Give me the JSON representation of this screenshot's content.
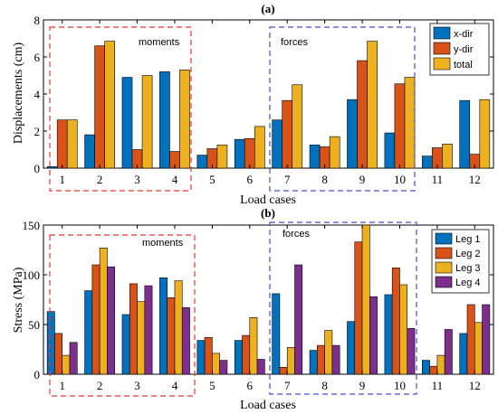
{
  "chart_data": [
    {
      "type": "bar",
      "title": "(a)",
      "xlabel": "Load cases",
      "ylabel": "Displacements (cm)",
      "ylim": [
        0,
        8
      ],
      "yticks": [
        0,
        2,
        4,
        6,
        8
      ],
      "categories": [
        "1",
        "2",
        "3",
        "4",
        "5",
        "6",
        "7",
        "8",
        "9",
        "10",
        "11",
        "12"
      ],
      "series": [
        {
          "name": "x-dir",
          "color": "#0072BD",
          "values": [
            0.08,
            1.8,
            4.9,
            5.2,
            0.7,
            1.55,
            2.6,
            1.25,
            3.7,
            1.9,
            0.65,
            3.65
          ]
        },
        {
          "name": "y-dir",
          "color": "#D95319",
          "values": [
            2.6,
            6.6,
            1.0,
            0.9,
            1.05,
            1.6,
            3.65,
            1.15,
            5.8,
            4.55,
            1.1,
            0.75
          ]
        },
        {
          "name": "total",
          "color": "#EDB120",
          "values": [
            2.6,
            6.85,
            5.0,
            5.3,
            1.25,
            2.25,
            4.5,
            1.7,
            6.85,
            4.9,
            1.3,
            3.7
          ]
        }
      ],
      "legend": "top-right",
      "annotations": [
        {
          "text": "moments",
          "region": "1-4"
        },
        {
          "text": "forces",
          "region": "7-10"
        }
      ]
    },
    {
      "type": "bar",
      "title": "(b)",
      "xlabel": "Load cases",
      "ylabel": "Stress (MPa)",
      "ylim": [
        0,
        150
      ],
      "yticks": [
        0,
        50,
        100,
        150
      ],
      "categories": [
        "1",
        "2",
        "3",
        "4",
        "5",
        "6",
        "7",
        "8",
        "9",
        "10",
        "11",
        "12"
      ],
      "series": [
        {
          "name": "Leg 1",
          "color": "#0072BD",
          "values": [
            63,
            84,
            60,
            97,
            34,
            34,
            81,
            24,
            53,
            80,
            14,
            41
          ]
        },
        {
          "name": "Leg 2",
          "color": "#D95319",
          "values": [
            41,
            110,
            91,
            77,
            37,
            39,
            7,
            29,
            133,
            107,
            8,
            70
          ]
        },
        {
          "name": "Leg 3",
          "color": "#EDB120",
          "values": [
            19,
            127,
            73,
            94,
            21,
            57,
            27,
            44,
            150,
            90,
            19,
            52
          ]
        },
        {
          "name": "Leg 4",
          "color": "#7E2F8E",
          "values": [
            32,
            108,
            89,
            67,
            14,
            15,
            110,
            29,
            78,
            46,
            45,
            70
          ]
        }
      ],
      "legend": "top-right",
      "annotations": [
        {
          "text": "moments",
          "region": "1-4"
        },
        {
          "text": "forces",
          "region": "7-10"
        }
      ]
    }
  ]
}
